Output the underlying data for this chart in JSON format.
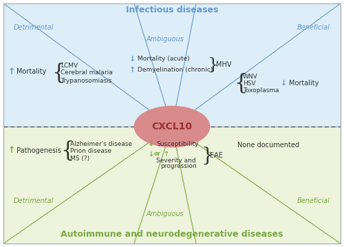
{
  "fig_width": 5.0,
  "fig_height": 3.59,
  "dpi": 100,
  "top_bg_color": "#ddeef8",
  "bottom_bg_color": "#eef3dc",
  "border_color": "#aaaaaa",
  "dashed_line_color": "#555555",
  "ellipse_color": "#d98a8a",
  "ellipse_text": "CXCL10",
  "ellipse_text_color": "#993333",
  "blue_color": "#6699cc",
  "green_color": "#7aaa44",
  "top_title": "Infectious diseases",
  "bottom_title": "Autoimmune and neurodegenerative diseases",
  "top_detrimental": "Detrimental",
  "top_beneficial": "Beneficial",
  "top_ambiguous": "Ambiguous",
  "bottom_detrimental": "Detrimental",
  "bottom_beneficial": "Beneficial",
  "bottom_ambiguous": "Ambiguous",
  "left_top_arrow": "↑",
  "left_top_label": "Mortality",
  "left_top_diseases": [
    "LCMV",
    "Cerebral malaria",
    "Trypanosomiasis"
  ],
  "center_top_arrow1": "↓",
  "center_top_label1": "Mortality (acute)",
  "center_top_arrow2": "↑",
  "center_top_label2": "Demyelination (chronic)",
  "center_top_disease": "MHV",
  "right_top_diseases": [
    "WNV",
    "HSV",
    "Toxoplasma"
  ],
  "right_top_arrow": "↓",
  "right_top_label": "Mortality",
  "left_bottom_arrow": "↑",
  "left_bottom_label": "Pathogenesis",
  "left_bottom_diseases": [
    "Alzheimer's disease",
    "Prion disease",
    "MS (?)"
  ],
  "center_bottom_arrow1": "↓",
  "center_bottom_arrow2": "↑",
  "center_bottom_or": "or",
  "center_bottom_label1": "Susceptibility",
  "center_bottom_label2": "Severity and",
  "center_bottom_label3": "progression",
  "center_bottom_disease": "EAE",
  "right_bottom_label": "None documented",
  "dark_text": "#333333"
}
